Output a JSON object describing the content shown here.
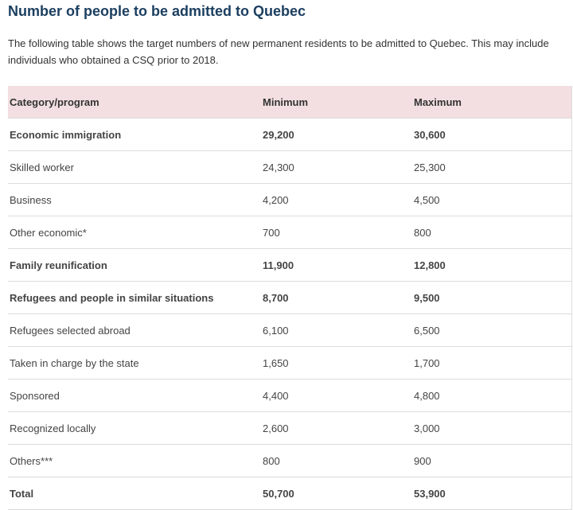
{
  "title": "Number of people to be admitted to Quebec",
  "intro": "The following table shows the target numbers of new permanent residents to be admitted to Quebec. This may include individuals who obtained a CSQ prior to 2018.",
  "table": {
    "headers": [
      "Category/program",
      "Minimum",
      "Maximum"
    ],
    "rows": [
      {
        "category": "Economic immigration",
        "minimum": "29,200",
        "maximum": "30,600",
        "bold": true
      },
      {
        "category": "Skilled worker",
        "minimum": "24,300",
        "maximum": "25,300",
        "bold": false
      },
      {
        "category": "Business",
        "minimum": "4,200",
        "maximum": "4,500",
        "bold": false
      },
      {
        "category": "Other economic*",
        "minimum": "700",
        "maximum": "800",
        "bold": false
      },
      {
        "category": "Family reunification",
        "minimum": "11,900",
        "maximum": "12,800",
        "bold": true
      },
      {
        "category": "Refugees and people in similar situations",
        "minimum": "8,700",
        "maximum": "9,500",
        "bold": true
      },
      {
        "category": "Refugees selected abroad",
        "minimum": "6,100",
        "maximum": "6,500",
        "bold": false
      },
      {
        "category": "Taken in charge by the state",
        "minimum": "1,650",
        "maximum": "1,700",
        "bold": false
      },
      {
        "category": "Sponsored",
        "minimum": "4,400",
        "maximum": "4,800",
        "bold": false
      },
      {
        "category": "Recognized locally",
        "minimum": "2,600",
        "maximum": "3,000",
        "bold": false
      },
      {
        "category": "Others***",
        "minimum": "800",
        "maximum": "900",
        "bold": false
      },
      {
        "category": "Total",
        "minimum": "50,700",
        "maximum": "53,900",
        "bold": true
      }
    ]
  }
}
